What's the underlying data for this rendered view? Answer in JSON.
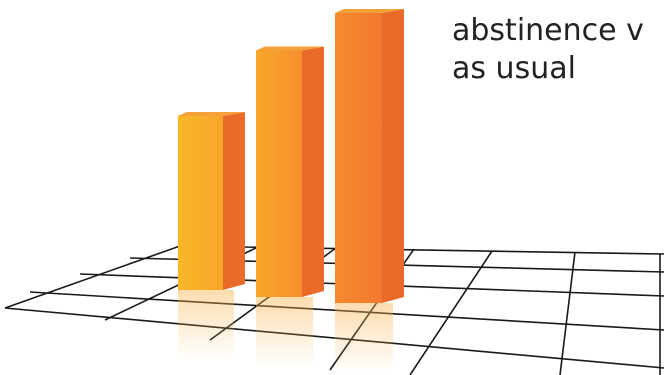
{
  "caption": {
    "line1": "abstinence v",
    "line2": "as usual"
  },
  "colors": {
    "bar_front_light": "#f9b229",
    "bar_front_dark": "#f3782f",
    "bar_side": "#ea6a2a",
    "bar_top": "#f4a13a",
    "grid_line": "#1a1a1a"
  },
  "chart_data": {
    "type": "bar",
    "style": "3d-perspective",
    "categories": [
      "",
      "",
      ""
    ],
    "values": [
      6,
      8.5,
      10
    ],
    "ylim": [
      0,
      10
    ],
    "grid": true,
    "title": "",
    "xlabel": "",
    "ylabel": ""
  }
}
